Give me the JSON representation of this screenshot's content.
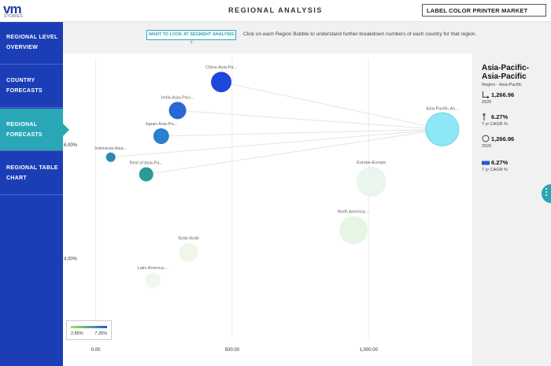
{
  "header": {
    "logo_text": "vm",
    "logo_sub": "STORIES",
    "title": "REGIONAL ANALYSIS",
    "market": "LABEL COLOR PRINTER MARKET"
  },
  "sidebar": {
    "items": [
      {
        "line1": "REGIONAL LEVEL",
        "line2": "OVERVIEW",
        "active": false
      },
      {
        "line1": "COUNTRY",
        "line2": "FORECASTS",
        "active": false
      },
      {
        "line1": "REGIONAL",
        "line2": "FORECASTS",
        "active": true
      },
      {
        "line1": "REGIONAL TABLE",
        "line2": "CHART",
        "active": false
      }
    ]
  },
  "segment": {
    "button_label": "WANT TO LOOK AT SEGMENT ANALYSIS ?",
    "hint": "Click on each Region Bubble to understand further breakdown numbers of each country for that region."
  },
  "chart_data": {
    "type": "scatter",
    "x_ticks": [
      "0.00",
      "500.00",
      "1,000.00"
    ],
    "y_ticks": [
      "6.00%",
      "4.00%"
    ],
    "xlim": [
      -120,
      1380
    ],
    "ylim": [
      2.6,
      7.6
    ],
    "points": [
      {
        "label": "China-Asia-Pa...",
        "x": 460,
        "y": 7.1,
        "r": 13,
        "color": "#1e48dc"
      },
      {
        "label": "India-Asia-Paci...",
        "x": 300,
        "y": 6.6,
        "r": 11,
        "color": "#2a68d6"
      },
      {
        "label": "Japan-Asia-Pa...",
        "x": 240,
        "y": 6.15,
        "r": 10,
        "color": "#2a80cc"
      },
      {
        "label": "Indonesia-Asia...",
        "x": 55,
        "y": 5.78,
        "r": 6,
        "color": "#2a8bb2"
      },
      {
        "label": "Rest of Asia-Pa...",
        "x": 185,
        "y": 5.48,
        "r": 9,
        "color": "#2a9a94"
      },
      {
        "label": "Asia-Pacific-As...",
        "x": 1270,
        "y": 6.27,
        "r": 21,
        "color": "#8ee7f7"
      },
      {
        "label": "Europe-Europe",
        "x": 1010,
        "y": 5.35,
        "r": 19,
        "color": "#e9f5ed"
      },
      {
        "label": "North America-...",
        "x": 945,
        "y": 4.5,
        "r": 18,
        "color": "#e6f5e4"
      },
      {
        "label": "RoW-RoW",
        "x": 340,
        "y": 4.11,
        "r": 12,
        "color": "#edf7ea"
      },
      {
        "label": "Latin America-...",
        "x": 210,
        "y": 3.62,
        "r": 10,
        "color": "#f0f8ee"
      }
    ],
    "links": [
      {
        "from": "Asia-Pacific-As...",
        "to": "China-Asia-Pa..."
      },
      {
        "from": "Asia-Pacific-As...",
        "to": "India-Asia-Paci..."
      },
      {
        "from": "Asia-Pacific-As...",
        "to": "Japan-Asia-Pa..."
      },
      {
        "from": "Asia-Pacific-As...",
        "to": "Indonesia-Asia..."
      },
      {
        "from": "Asia-Pacific-As...",
        "to": "Rest of Asia-Pa..."
      }
    ]
  },
  "legend": {
    "min": "2.85%",
    "max": "7.25%"
  },
  "panel": {
    "title": "Asia-Pacific-Asia-Pacific",
    "region": "Region - Asia-Pacific",
    "stat1_value": "1,266.96",
    "stat1_note": "2020",
    "stat2_value": "6.27%",
    "stat2_note": "7 yr CAGR %",
    "stat3_value": "1,266.96",
    "stat3_note": "2020",
    "stat4_value": "6.27%",
    "stat4_note": "7 yr CAGR %"
  }
}
